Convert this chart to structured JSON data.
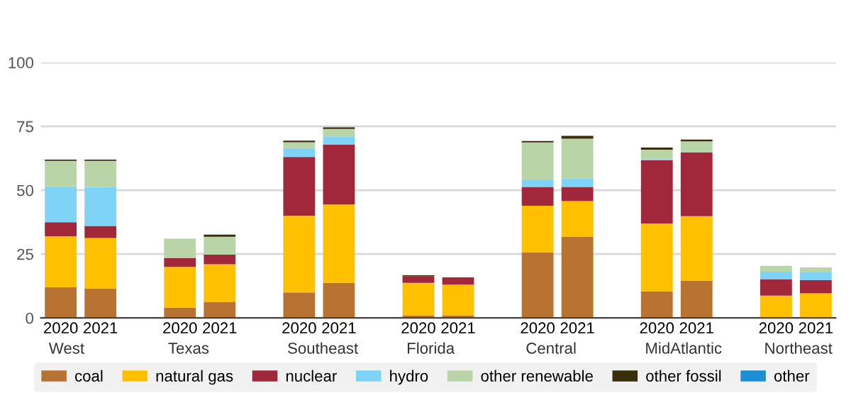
{
  "chart_data": {
    "type": "bar",
    "stacked": true,
    "categories": [
      "2020",
      "2021",
      null,
      "2020",
      "2021",
      null,
      "2020",
      "2021",
      null,
      "2020",
      "2021",
      null,
      "2020",
      "2021",
      null,
      "2020",
      "2021",
      null,
      "2020",
      "2021"
    ],
    "series": [
      {
        "name": "coal",
        "color": "#b87333",
        "values": [
          12,
          11.5,
          null,
          4,
          6.3,
          null,
          10,
          13.7,
          null,
          1,
          1,
          null,
          25.7,
          31.7,
          null,
          10.4,
          14.6,
          null,
          0,
          0
        ]
      },
      {
        "name": "natural gas",
        "color": "#ffc000",
        "values": [
          20,
          19.8,
          null,
          16,
          14.7,
          null,
          30,
          30.7,
          null,
          12.7,
          12,
          null,
          18.2,
          14,
          null,
          26.6,
          25.2,
          null,
          8.7,
          9.6
        ]
      },
      {
        "name": "nuclear",
        "color": "#a0283a",
        "values": [
          5.5,
          4.7,
          null,
          3.5,
          3.8,
          null,
          23,
          23.4,
          null,
          2.6,
          2.9,
          null,
          7.4,
          5.6,
          null,
          24.7,
          25,
          null,
          6.5,
          5.2
        ]
      },
      {
        "name": "hydro",
        "color": "#7fd3f7",
        "values": [
          14,
          15.3,
          null,
          0,
          0,
          null,
          3.5,
          3.3,
          null,
          0,
          0,
          null,
          2.6,
          3.3,
          null,
          0.5,
          0,
          null,
          2.9,
          3
        ]
      },
      {
        "name": "other renewable",
        "color": "#b9d5a8",
        "values": [
          10,
          10.2,
          null,
          7.5,
          7,
          null,
          2.3,
          2.9,
          null,
          null,
          null,
          null,
          14.8,
          15.6,
          null,
          3.7,
          4.3,
          null,
          2.3,
          2
        ]
      },
      {
        "name": "other fossil",
        "color": "#3a2e0a",
        "values": [
          0.5,
          0.5,
          null,
          0,
          0.8,
          null,
          0.6,
          0.6,
          null,
          0.4,
          0,
          null,
          0.6,
          1.1,
          null,
          0.8,
          0.7,
          null,
          0,
          0
        ]
      },
      {
        "name": "other",
        "color": "#1a8fd6",
        "values": [
          0,
          0,
          null,
          0,
          0,
          null,
          0,
          0,
          null,
          0,
          0,
          null,
          0,
          0,
          null,
          0,
          0,
          null,
          0,
          0
        ]
      }
    ],
    "annotations": [
      "West",
      "Texas",
      "Southeast",
      "Florida",
      "Central",
      "MidAtlantic",
      "Northeast"
    ],
    "ylim": [
      0,
      100
    ],
    "yticks": [
      0,
      25,
      50,
      75,
      100
    ],
    "grid": "y",
    "legend": "bottom"
  }
}
